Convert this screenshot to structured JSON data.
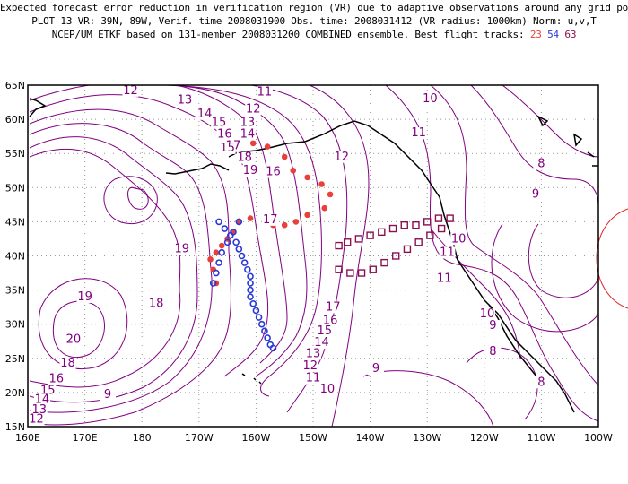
{
  "header": {
    "line1": "Expected forecast error reduction in verification region (VR) due to adaptive observations around any grid point.",
    "line2": "PLOT 13 VR: 39N, 89W, Verif. time 2008031900 Obs. time: 2008031412 (VR radius: 1000km) Norm: u,v,T",
    "line3_prefix": "NCEP/UM ETKF based on 131-member 2008031200 COMBINED ensemble.  Best flight tracks:",
    "track_a": "23",
    "track_b": "54",
    "track_c": "63"
  },
  "colors": {
    "contour": "#800080",
    "track_a": "#e8403a",
    "track_b": "#2a3ad8",
    "track_c": "#8a1050",
    "verification_circle": "#e02020",
    "grid": "#999999"
  },
  "map": {
    "lon_labels": [
      "160E",
      "170E",
      "180",
      "170W",
      "160W",
      "150W",
      "140W",
      "130W",
      "120W",
      "110W",
      "100W"
    ],
    "lat_labels": [
      "65N",
      "60N",
      "55N",
      "50N",
      "45N",
      "40N",
      "35N",
      "30N",
      "25N",
      "20N",
      "15N"
    ],
    "contour_labels": [
      {
        "text": "13",
        "lon": -172.5,
        "lat": 62.3
      },
      {
        "text": "12",
        "lon": -182,
        "lat": 63.7
      },
      {
        "text": "11",
        "lon": -158.5,
        "lat": 63.5
      },
      {
        "text": "12",
        "lon": -160.5,
        "lat": 61.0
      },
      {
        "text": "13",
        "lon": -161.5,
        "lat": 59.0
      },
      {
        "text": "14",
        "lon": -161.5,
        "lat": 57.3
      },
      {
        "text": "14",
        "lon": -169,
        "lat": 60.3
      },
      {
        "text": "15",
        "lon": -166.5,
        "lat": 59.0
      },
      {
        "text": "16",
        "lon": -165.5,
        "lat": 57.3
      },
      {
        "text": "17",
        "lon": -164,
        "lat": 55.6
      },
      {
        "text": "18",
        "lon": -162,
        "lat": 53.9
      },
      {
        "text": "19",
        "lon": -161,
        "lat": 52.0
      },
      {
        "text": "15",
        "lon": -165,
        "lat": 55.3
      },
      {
        "text": "16",
        "lon": -157,
        "lat": 51.8
      },
      {
        "text": "17",
        "lon": -157.5,
        "lat": 44.8
      },
      {
        "text": "19",
        "lon": -173,
        "lat": 40.5
      },
      {
        "text": "18",
        "lon": -177.5,
        "lat": 32.5
      },
      {
        "text": "19",
        "lon": -190,
        "lat": 33.5
      },
      {
        "text": "20",
        "lon": -192,
        "lat": 27.3
      },
      {
        "text": "18",
        "lon": -193,
        "lat": 23.8
      },
      {
        "text": "16",
        "lon": -195,
        "lat": 21.5
      },
      {
        "text": "15",
        "lon": -196.5,
        "lat": 19.8
      },
      {
        "text": "14",
        "lon": -197.5,
        "lat": 18.5
      },
      {
        "text": "13",
        "lon": -198,
        "lat": 17.0
      },
      {
        "text": "12",
        "lon": -198.5,
        "lat": 15.6
      },
      {
        "text": "9",
        "lon": -186,
        "lat": 19.2
      },
      {
        "text": "17",
        "lon": -146.5,
        "lat": 32.0
      },
      {
        "text": "16",
        "lon": -147,
        "lat": 30.0
      },
      {
        "text": "15",
        "lon": -148,
        "lat": 28.5
      },
      {
        "text": "14",
        "lon": -148.5,
        "lat": 26.8
      },
      {
        "text": "13",
        "lon": -150,
        "lat": 25.2
      },
      {
        "text": "12",
        "lon": -150.5,
        "lat": 23.4
      },
      {
        "text": "11",
        "lon": -150,
        "lat": 21.6
      },
      {
        "text": "10",
        "lon": -147.5,
        "lat": 20.0
      },
      {
        "text": "9",
        "lon": -139,
        "lat": 23.0
      },
      {
        "text": "12",
        "lon": -145,
        "lat": 54.0
      },
      {
        "text": "11",
        "lon": -131.5,
        "lat": 57.5
      },
      {
        "text": "10",
        "lon": -129.5,
        "lat": 62.5
      },
      {
        "text": "10",
        "lon": -124.5,
        "lat": 42.0
      },
      {
        "text": "11",
        "lon": -126.5,
        "lat": 40.0
      },
      {
        "text": "11",
        "lon": -127,
        "lat": 36.2
      },
      {
        "text": "10",
        "lon": -119.5,
        "lat": 31.0
      },
      {
        "text": "9",
        "lon": -118.5,
        "lat": 29.3
      },
      {
        "text": "8",
        "lon": -118.5,
        "lat": 25.5
      },
      {
        "text": "8",
        "lon": -110,
        "lat": 21.0
      },
      {
        "text": "8",
        "lon": -110,
        "lat": 53.0
      },
      {
        "text": "9",
        "lon": -111,
        "lat": 48.5
      }
    ]
  },
  "tracks": {
    "track_a_points": [
      [
        -160.5,
        56.5
      ],
      [
        -158,
        56
      ],
      [
        -155,
        54.5
      ],
      [
        -153.5,
        52.5
      ],
      [
        -151,
        51.5
      ],
      [
        -148.5,
        50.5
      ],
      [
        -147,
        49
      ],
      [
        -148,
        47
      ],
      [
        -151,
        46
      ],
      [
        -153,
        45
      ],
      [
        -155,
        44.5
      ],
      [
        -157,
        44.5
      ],
      [
        -161,
        45.5
      ],
      [
        -163,
        45
      ],
      [
        -164,
        43.5
      ],
      [
        -165,
        42.5
      ],
      [
        -166,
        41.5
      ],
      [
        -167,
        40.5
      ],
      [
        -168,
        39.5
      ],
      [
        -167.5,
        38
      ],
      [
        -167,
        36
      ]
    ],
    "track_b_points": [
      [
        -166.5,
        45
      ],
      [
        -165.5,
        44
      ],
      [
        -164.5,
        43
      ],
      [
        -163.5,
        42
      ],
      [
        -163,
        41
      ],
      [
        -162.5,
        40
      ],
      [
        -162,
        39
      ],
      [
        -161.5,
        38
      ],
      [
        -161,
        37
      ],
      [
        -161,
        36
      ],
      [
        -161,
        35
      ],
      [
        -161,
        34
      ],
      [
        -160.5,
        33
      ],
      [
        -160,
        32
      ],
      [
        -159.5,
        31
      ],
      [
        -159,
        30
      ],
      [
        -158.5,
        29
      ],
      [
        -158,
        28
      ],
      [
        -157.5,
        27
      ],
      [
        -157,
        26.5
      ],
      [
        -163,
        45
      ],
      [
        -164,
        43.5
      ],
      [
        -165,
        42
      ],
      [
        -166,
        40.5
      ],
      [
        -166.5,
        39
      ],
      [
        -167,
        37.5
      ],
      [
        -167.5,
        36
      ]
    ],
    "track_c_points": [
      [
        -145.5,
        41.5
      ],
      [
        -144,
        42
      ],
      [
        -142,
        42.5
      ],
      [
        -140,
        43
      ],
      [
        -138,
        43.5
      ],
      [
        -136,
        44
      ],
      [
        -134,
        44.5
      ],
      [
        -132,
        44.5
      ],
      [
        -130,
        45
      ],
      [
        -128,
        45.5
      ],
      [
        -126,
        45.5
      ],
      [
        -145.5,
        38
      ],
      [
        -143.5,
        37.5
      ],
      [
        -141.5,
        37.5
      ],
      [
        -139.5,
        38
      ],
      [
        -137.5,
        39
      ],
      [
        -135.5,
        40
      ],
      [
        -133.5,
        41
      ],
      [
        -131.5,
        42
      ],
      [
        -129.5,
        43
      ],
      [
        -127.5,
        44
      ]
    ]
  }
}
